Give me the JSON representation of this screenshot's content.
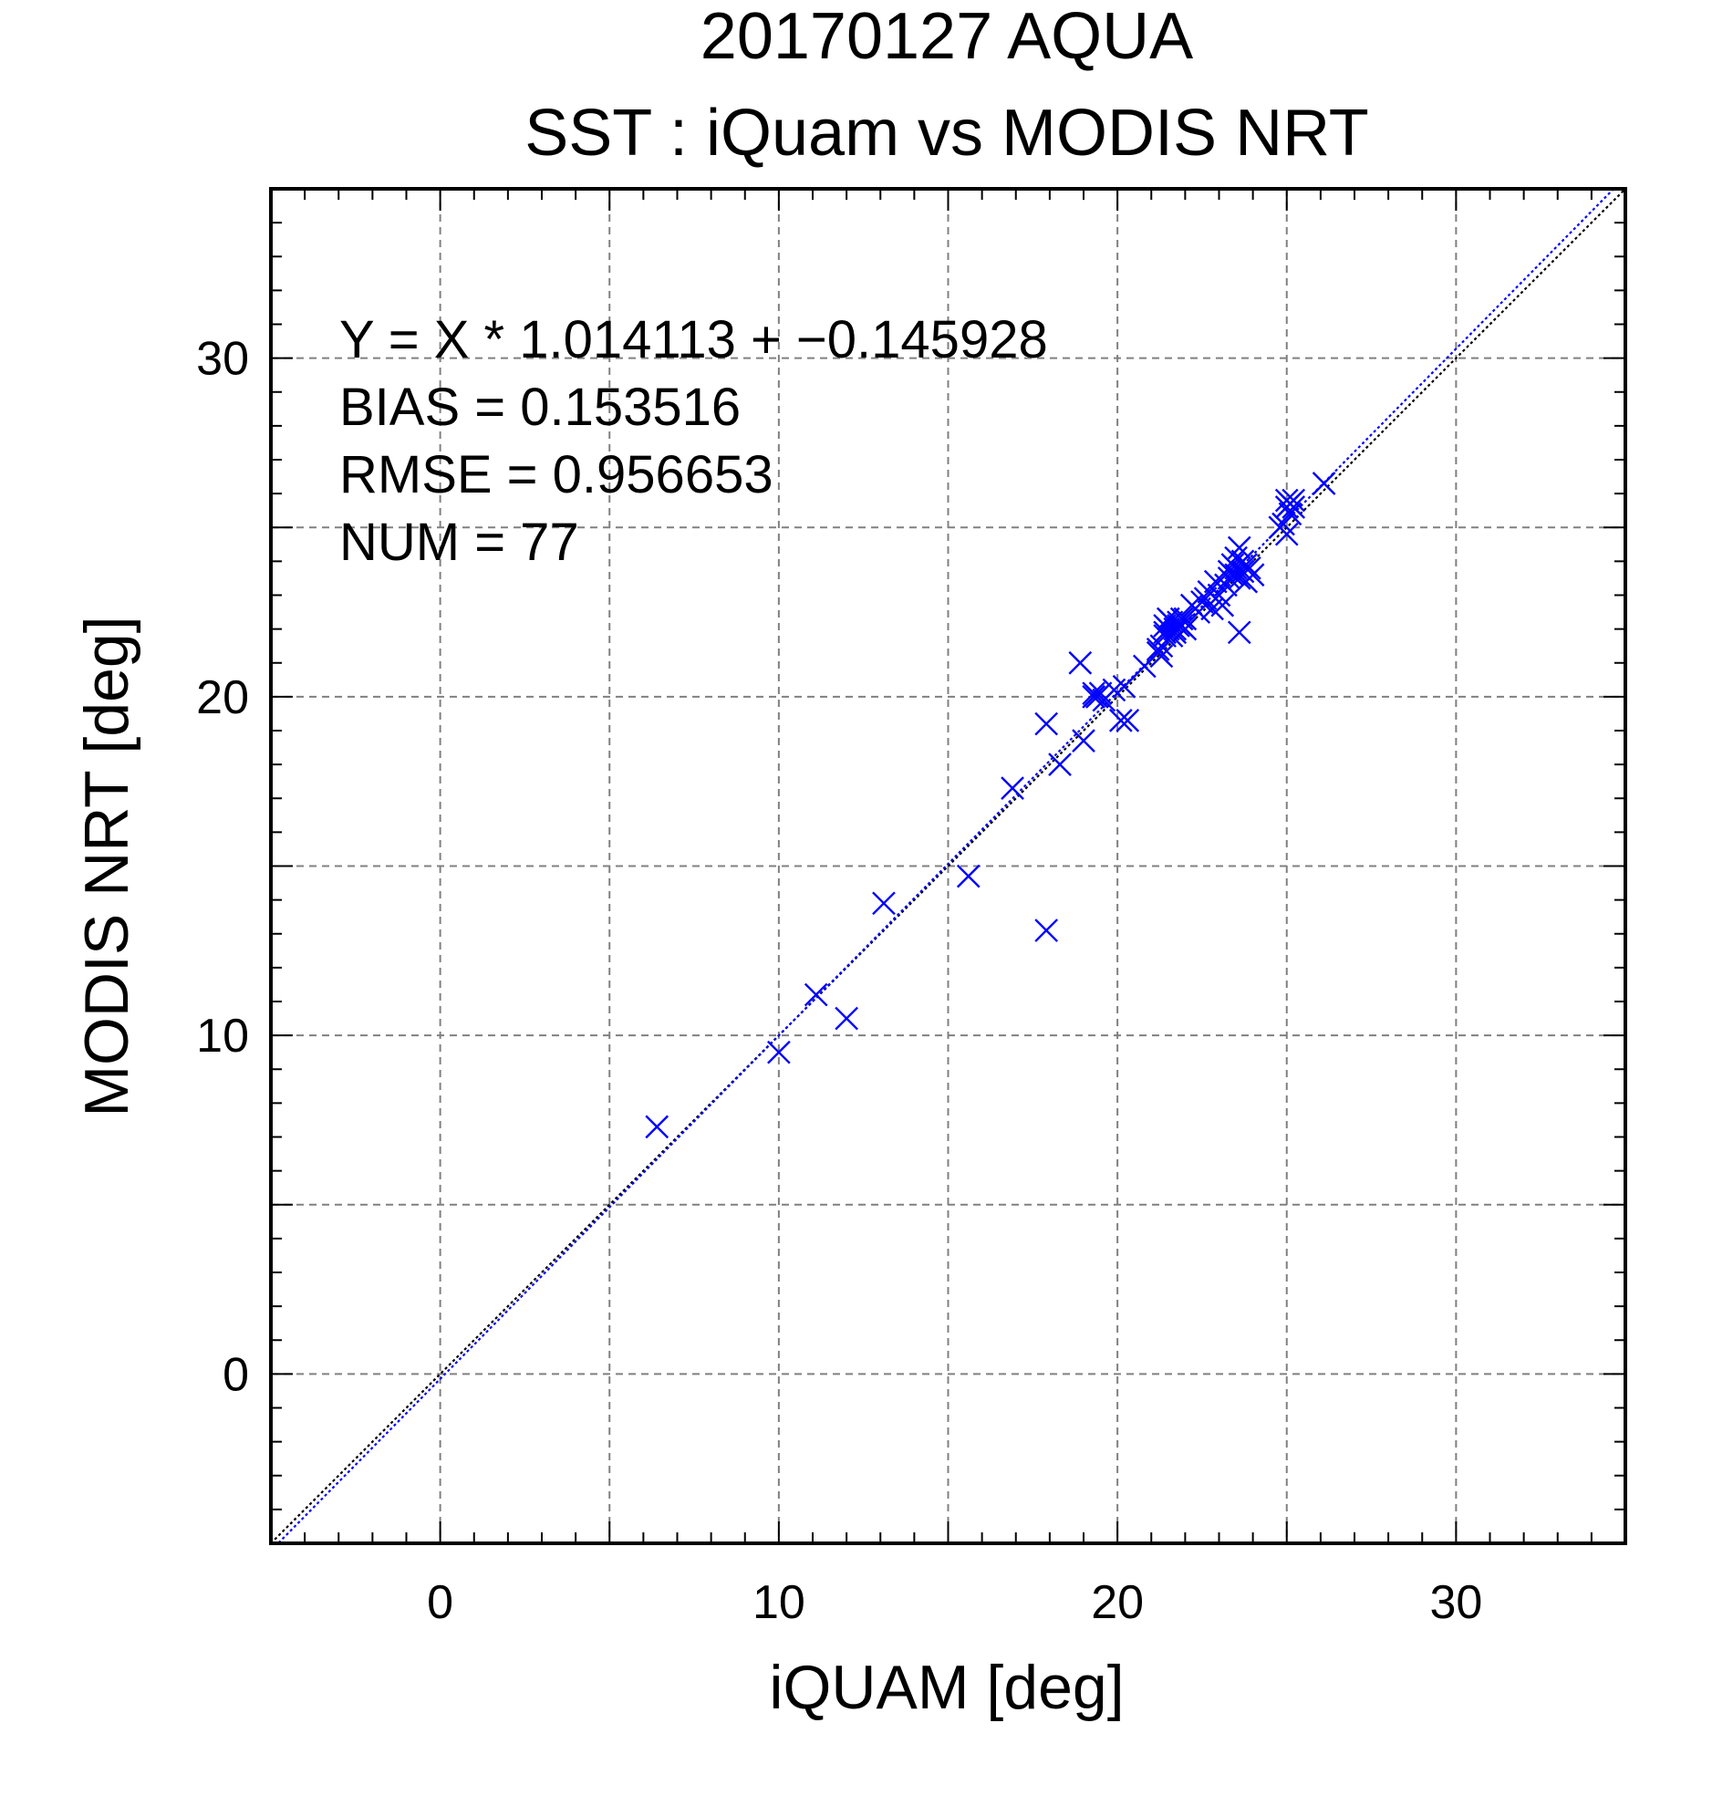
{
  "chart_data": {
    "type": "scatter",
    "title": "20170127 AQUA",
    "subtitle": "SST : iQuam vs MODIS NRT",
    "xlabel": "iQUAM [deg]",
    "ylabel": "MODIS NRT [deg]",
    "xlim": [
      -5,
      35
    ],
    "ylim": [
      -5,
      35
    ],
    "xticks": [
      0,
      10,
      20,
      30
    ],
    "yticks": [
      0,
      10,
      20,
      30
    ],
    "xtick_labels": [
      "0",
      "10",
      "20",
      "30"
    ],
    "ytick_labels": [
      "0",
      "10",
      "20",
      "30"
    ],
    "grid": true,
    "marker": "x",
    "marker_color": "#0000ff",
    "annotations": [
      "Y = X * 1.014113 + −0.145928",
      "BIAS = 0.153516",
      "RMSE = 0.956653",
      "NUM = 77"
    ],
    "fit": {
      "slope": 1.014113,
      "intercept": -0.145928,
      "color": "#0000ff",
      "style": "dotted"
    },
    "identity_line": {
      "slope": 1,
      "intercept": 0,
      "color": "#000000",
      "style": "dotted"
    },
    "points": [
      [
        6.4,
        7.3
      ],
      [
        10.0,
        9.5
      ],
      [
        11.1,
        11.2
      ],
      [
        12.0,
        10.5
      ],
      [
        13.1,
        13.9
      ],
      [
        15.6,
        14.7
      ],
      [
        16.9,
        17.3
      ],
      [
        17.9,
        13.1
      ],
      [
        17.9,
        19.2
      ],
      [
        18.3,
        18.0
      ],
      [
        19.0,
        18.7
      ],
      [
        18.9,
        21.0
      ],
      [
        19.3,
        20.1
      ],
      [
        19.3,
        20.0
      ],
      [
        19.4,
        20.0
      ],
      [
        19.5,
        20.1
      ],
      [
        19.6,
        19.9
      ],
      [
        20.1,
        19.3
      ],
      [
        20.3,
        19.3
      ],
      [
        20.2,
        20.3
      ],
      [
        21.2,
        21.4
      ],
      [
        21.3,
        21.5
      ],
      [
        21.3,
        21.2
      ],
      [
        21.4,
        21.8
      ],
      [
        21.4,
        21.9
      ],
      [
        21.4,
        22.1
      ],
      [
        21.5,
        22.3
      ],
      [
        21.5,
        22.0
      ],
      [
        21.6,
        21.8
      ],
      [
        21.6,
        22.2
      ],
      [
        21.7,
        21.9
      ],
      [
        21.7,
        22.0
      ],
      [
        21.8,
        22.1
      ],
      [
        21.8,
        22.2
      ],
      [
        21.9,
        22.3
      ],
      [
        22.0,
        22.0
      ],
      [
        22.0,
        22.3
      ],
      [
        22.2,
        22.7
      ],
      [
        22.6,
        22.9
      ],
      [
        22.7,
        23.1
      ],
      [
        22.8,
        22.6
      ],
      [
        22.9,
        23.4
      ],
      [
        23.0,
        23.0
      ],
      [
        23.1,
        22.7
      ],
      [
        23.2,
        23.3
      ],
      [
        23.3,
        23.5
      ],
      [
        23.3,
        23.7
      ],
      [
        23.4,
        23.6
      ],
      [
        23.4,
        23.9
      ],
      [
        23.5,
        24.1
      ],
      [
        23.5,
        23.6
      ],
      [
        23.5,
        23.8
      ],
      [
        23.6,
        24.4
      ],
      [
        23.6,
        23.5
      ],
      [
        23.6,
        21.9
      ],
      [
        23.7,
        24.0
      ],
      [
        23.7,
        23.7
      ],
      [
        23.8,
        23.4
      ],
      [
        23.9,
        23.8
      ],
      [
        24.0,
        23.6
      ],
      [
        24.9,
        25.1
      ],
      [
        25.0,
        24.8
      ],
      [
        25.0,
        25.6
      ],
      [
        25.0,
        25.8
      ],
      [
        25.1,
        25.7
      ],
      [
        25.1,
        25.4
      ],
      [
        25.2,
        25.6
      ],
      [
        25.2,
        25.8
      ],
      [
        26.1,
        26.3
      ],
      [
        21.9,
        22.1
      ],
      [
        22.4,
        22.5
      ],
      [
        20.8,
        20.9
      ],
      [
        22.5,
        22.8
      ],
      [
        23.8,
        23.9
      ],
      [
        24.8,
        25.0
      ],
      [
        21.2,
        21.3
      ],
      [
        19.9,
        20.2
      ]
    ]
  }
}
